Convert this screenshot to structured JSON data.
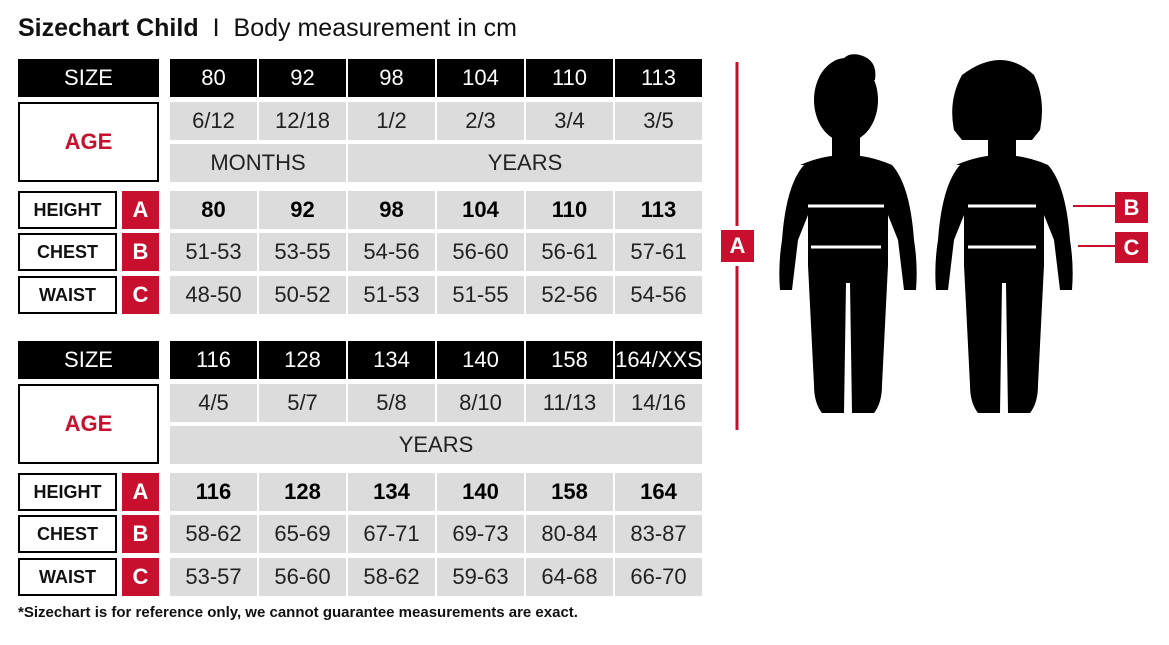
{
  "title": {
    "main": "Sizechart Child",
    "separator": "I",
    "subtitle": "Body measurement in cm"
  },
  "colors": {
    "accent": "#c8102e",
    "header_bg": "#000000",
    "cell_bg": "#dcdcdc"
  },
  "labels": {
    "size": "SIZE",
    "age": "AGE",
    "height": "HEIGHT",
    "chest": "CHEST",
    "waist": "WAIST",
    "height_letter": "A",
    "chest_letter": "B",
    "waist_letter": "C"
  },
  "tables": [
    {
      "sizes": [
        "80",
        "92",
        "98",
        "104",
        "110",
        "113"
      ],
      "ages": [
        "6/12",
        "12/18",
        "1/2",
        "2/3",
        "3/4",
        "3/5"
      ],
      "age_units": [
        {
          "label": "MONTHS",
          "span": 2
        },
        {
          "label": "YEARS",
          "span": 4
        }
      ],
      "height": [
        "80",
        "92",
        "98",
        "104",
        "110",
        "113"
      ],
      "chest": [
        "51-53",
        "53-55",
        "54-56",
        "56-60",
        "56-61",
        "57-61"
      ],
      "waist": [
        "48-50",
        "50-52",
        "51-53",
        "51-55",
        "52-56",
        "54-56"
      ]
    },
    {
      "sizes": [
        "116",
        "128",
        "134",
        "140",
        "158",
        "164/XXS"
      ],
      "ages": [
        "4/5",
        "5/7",
        "5/8",
        "8/10",
        "11/13",
        "14/16"
      ],
      "age_units": [
        {
          "label": "YEARS",
          "span": 6
        }
      ],
      "height": [
        "116",
        "128",
        "134",
        "140",
        "158",
        "164"
      ],
      "chest": [
        "58-62",
        "65-69",
        "67-71",
        "69-73",
        "80-84",
        "83-87"
      ],
      "waist": [
        "53-57",
        "56-60",
        "58-62",
        "59-63",
        "64-68",
        "66-70"
      ]
    }
  ],
  "figure": {
    "icons": [
      "boy-silhouette-icon",
      "girl-silhouette-icon"
    ],
    "markers": {
      "height": "A",
      "chest": "B",
      "waist": "C"
    }
  },
  "footnote": "*Sizechart is for reference only, we cannot guarantee measurements are exact."
}
